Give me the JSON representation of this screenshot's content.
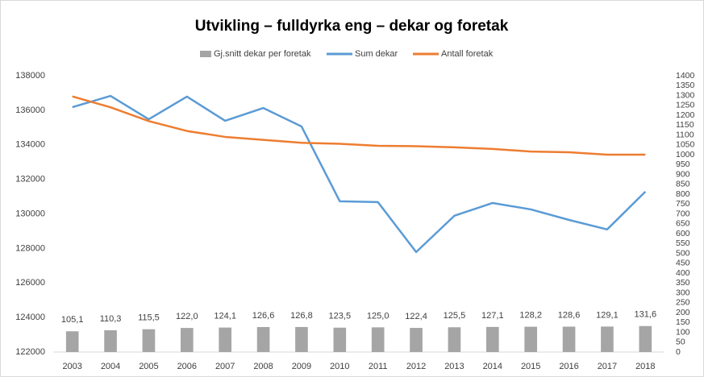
{
  "chart_data": {
    "type": "bar-line",
    "title": "Utvikling – fulldyrka eng – dekar og foretak",
    "categories": [
      "2003",
      "2004",
      "2005",
      "2006",
      "2007",
      "2008",
      "2009",
      "2010",
      "2011",
      "2012",
      "2013",
      "2014",
      "2015",
      "2016",
      "2017",
      "2018"
    ],
    "series": [
      {
        "name": "Gj.snitt dekar per foretak",
        "type": "bar",
        "axis": "y2",
        "color": "#a5a5a5",
        "values": [
          105.1,
          110.3,
          115.5,
          122.0,
          124.1,
          126.6,
          126.8,
          123.5,
          125.0,
          122.4,
          125.5,
          127.1,
          128.2,
          128.6,
          129.1,
          131.6
        ],
        "value_labels": [
          "105,1",
          "110,3",
          "115,5",
          "122,0",
          "124,1",
          "126,6",
          "126,8",
          "123,5",
          "125,0",
          "122,4",
          "125,5",
          "127,1",
          "128,2",
          "128,6",
          "129,1",
          "131,6"
        ]
      },
      {
        "name": "Sum dekar",
        "type": "line",
        "axis": "y",
        "color": "#5b9bd5",
        "values": [
          136180,
          136830,
          135480,
          136790,
          135390,
          136130,
          135060,
          130730,
          130680,
          127790,
          129890,
          130630,
          130260,
          129650,
          129100,
          131290
        ]
      },
      {
        "name": "Antall foretak",
        "type": "line",
        "axis": "y2",
        "color": "#ed7d31",
        "values": [
          1295,
          1240,
          1170,
          1120,
          1090,
          1075,
          1060,
          1055,
          1045,
          1043,
          1037,
          1029,
          1016,
          1012,
          1000,
          1000
        ]
      }
    ],
    "ylim": [
      122000,
      138000
    ],
    "yticks": [
      122000,
      124000,
      126000,
      128000,
      130000,
      132000,
      134000,
      136000,
      138000
    ],
    "y2lim": [
      0,
      1400
    ],
    "y2ticks": [
      0,
      50,
      100,
      150,
      200,
      250,
      300,
      350,
      400,
      450,
      500,
      550,
      600,
      650,
      700,
      750,
      800,
      850,
      900,
      950,
      1000,
      1050,
      1100,
      1150,
      1200,
      1250,
      1300,
      1350,
      1400
    ],
    "legend": "top",
    "grid": false
  }
}
